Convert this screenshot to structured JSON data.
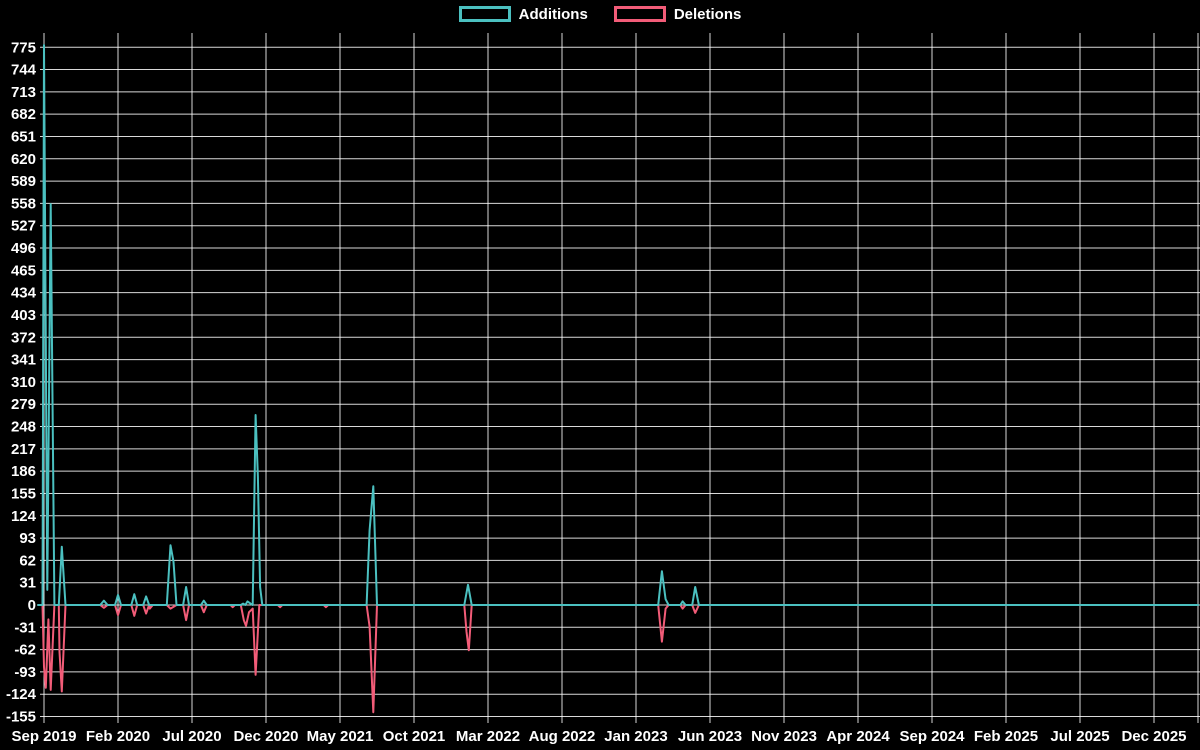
{
  "legend": {
    "items": [
      {
        "label": "Additions",
        "color": "#4bc0c0"
      },
      {
        "label": "Deletions",
        "color": "#f25c78"
      }
    ]
  },
  "chart_data": {
    "type": "line",
    "title": "",
    "legend_position": "top-center",
    "background_color": "#000000",
    "grid": true,
    "grid_color": "rgba(255,255,255,0.85)",
    "x_axis": {
      "unit": "months since Sep 2019",
      "tick_labels": [
        "Sep 2019",
        "Feb 2020",
        "Jul 2020",
        "Dec 2020",
        "May 2021",
        "Oct 2021",
        "Mar 2022",
        "Aug 2022",
        "Jan 2023",
        "Jun 2023",
        "Nov 2023",
        "Apr 2024",
        "Sep 2024",
        "Feb 2025",
        "Jul 2025",
        "Dec 2025"
      ],
      "months_per_tick": 5,
      "range_months": [
        -0.4,
        78.0
      ]
    },
    "y_axis": {
      "min": -155,
      "max": 775,
      "step": 31,
      "ticks": [
        775,
        744,
        713,
        682,
        651,
        620,
        589,
        558,
        527,
        496,
        465,
        434,
        403,
        372,
        341,
        310,
        279,
        248,
        217,
        186,
        155,
        124,
        93,
        62,
        31,
        0,
        -31,
        -62,
        -93,
        -124,
        -155
      ]
    },
    "series": [
      {
        "name": "Additions",
        "color": "#4bc0c0",
        "points": [
          [
            -0.4,
            0
          ],
          [
            -0.1,
            0
          ],
          [
            0,
            778
          ],
          [
            0.22,
            21
          ],
          [
            0.45,
            557
          ],
          [
            0.7,
            0
          ],
          [
            1.0,
            0
          ],
          [
            1.2,
            81
          ],
          [
            1.45,
            0
          ],
          [
            3.8,
            0
          ],
          [
            4.05,
            6
          ],
          [
            4.3,
            0
          ],
          [
            4.8,
            0
          ],
          [
            5.0,
            14
          ],
          [
            5.2,
            0
          ],
          [
            5.9,
            0
          ],
          [
            6.1,
            15
          ],
          [
            6.3,
            0
          ],
          [
            6.7,
            0
          ],
          [
            6.9,
            12
          ],
          [
            7.1,
            0
          ],
          [
            8.3,
            0
          ],
          [
            8.55,
            83
          ],
          [
            8.75,
            60
          ],
          [
            8.95,
            0
          ],
          [
            9.4,
            0
          ],
          [
            9.6,
            25
          ],
          [
            9.8,
            0
          ],
          [
            10.6,
            0
          ],
          [
            10.8,
            6
          ],
          [
            11.0,
            0
          ],
          [
            13.3,
            0
          ],
          [
            13.45,
            2
          ],
          [
            13.6,
            0
          ],
          [
            13.75,
            5
          ],
          [
            13.95,
            2
          ],
          [
            14.1,
            0
          ],
          [
            14.3,
            264
          ],
          [
            14.45,
            178
          ],
          [
            14.6,
            25
          ],
          [
            14.75,
            0
          ],
          [
            21.8,
            0
          ],
          [
            22.0,
            104
          ],
          [
            22.25,
            165
          ],
          [
            22.5,
            0
          ],
          [
            28.4,
            0
          ],
          [
            28.65,
            28
          ],
          [
            28.9,
            0
          ],
          [
            41.5,
            0
          ],
          [
            41.75,
            47
          ],
          [
            42.0,
            8
          ],
          [
            42.2,
            0
          ],
          [
            43.0,
            0
          ],
          [
            43.15,
            5
          ],
          [
            43.35,
            0
          ],
          [
            43.8,
            0
          ],
          [
            44.0,
            25
          ],
          [
            44.25,
            0
          ],
          [
            78.0,
            0
          ]
        ]
      },
      {
        "name": "Deletions",
        "color": "#f25c78",
        "points": [
          [
            -0.4,
            0
          ],
          [
            -0.1,
            0
          ],
          [
            0,
            -86
          ],
          [
            0.12,
            -115
          ],
          [
            0.3,
            -20
          ],
          [
            0.45,
            -118
          ],
          [
            0.7,
            0
          ],
          [
            1.0,
            0
          ],
          [
            1.05,
            -65
          ],
          [
            1.2,
            -120
          ],
          [
            1.45,
            0
          ],
          [
            3.8,
            0
          ],
          [
            4.05,
            -4
          ],
          [
            4.3,
            0
          ],
          [
            4.8,
            0
          ],
          [
            5.0,
            -14
          ],
          [
            5.2,
            0
          ],
          [
            5.9,
            0
          ],
          [
            6.1,
            -15
          ],
          [
            6.3,
            0
          ],
          [
            6.7,
            0
          ],
          [
            6.9,
            -12
          ],
          [
            7.1,
            0
          ],
          [
            7.15,
            -5
          ],
          [
            7.35,
            0
          ],
          [
            8.3,
            0
          ],
          [
            8.55,
            -5
          ],
          [
            8.95,
            0
          ],
          [
            9.4,
            0
          ],
          [
            9.6,
            -21
          ],
          [
            9.8,
            0
          ],
          [
            10.6,
            0
          ],
          [
            10.8,
            -10
          ],
          [
            11.0,
            0
          ],
          [
            12.6,
            0
          ],
          [
            12.75,
            -3
          ],
          [
            12.9,
            0
          ],
          [
            13.3,
            0
          ],
          [
            13.5,
            -21
          ],
          [
            13.65,
            -29
          ],
          [
            13.85,
            -10
          ],
          [
            14.1,
            -5
          ],
          [
            14.3,
            -97
          ],
          [
            14.55,
            0
          ],
          [
            15.8,
            0
          ],
          [
            15.95,
            -3
          ],
          [
            16.1,
            0
          ],
          [
            18.9,
            0
          ],
          [
            19.05,
            -3
          ],
          [
            19.2,
            0
          ],
          [
            21.8,
            0
          ],
          [
            22.0,
            -30
          ],
          [
            22.25,
            -149
          ],
          [
            22.5,
            0
          ],
          [
            28.4,
            0
          ],
          [
            28.55,
            -37
          ],
          [
            28.7,
            -63
          ],
          [
            28.9,
            0
          ],
          [
            41.5,
            0
          ],
          [
            41.75,
            -51
          ],
          [
            42.0,
            -5
          ],
          [
            42.2,
            0
          ],
          [
            43.0,
            0
          ],
          [
            43.15,
            -5
          ],
          [
            43.35,
            0
          ],
          [
            43.8,
            0
          ],
          [
            44.0,
            -11
          ],
          [
            44.25,
            0
          ],
          [
            78.0,
            0
          ]
        ]
      }
    ]
  }
}
